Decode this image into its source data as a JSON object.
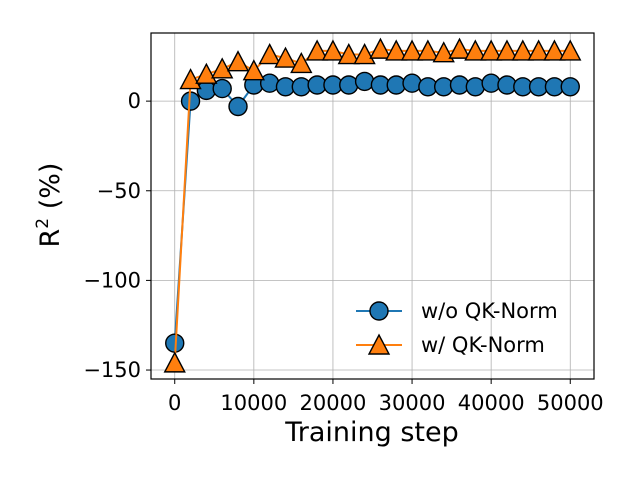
{
  "chart_data": {
    "type": "line",
    "xlabel": "Training step",
    "ylabel_base": "R",
    "ylabel_sup": "2",
    "ylabel_rest": " (%)",
    "xlim": [
      -3000,
      53000
    ],
    "ylim": [
      -155,
      38
    ],
    "xticks": [
      0,
      10000,
      20000,
      30000,
      40000,
      50000
    ],
    "xtick_labels": [
      "0",
      "10000",
      "20000",
      "30000",
      "40000",
      "50000"
    ],
    "yticks": [
      0,
      -50,
      -100,
      -150
    ],
    "ytick_labels": [
      "0",
      "−50",
      "−100",
      "−150"
    ],
    "grid": true,
    "legend_position": "lower-right",
    "x": [
      0,
      2000,
      4000,
      6000,
      8000,
      10000,
      12000,
      14000,
      16000,
      18000,
      20000,
      22000,
      24000,
      26000,
      28000,
      30000,
      32000,
      34000,
      36000,
      38000,
      40000,
      42000,
      44000,
      46000,
      48000,
      50000
    ],
    "series": [
      {
        "name": "w/o QK-Norm",
        "color": "#1f77b4",
        "marker": "circle",
        "values": [
          -135,
          0,
          6,
          7,
          -3,
          9,
          10,
          8,
          8,
          9,
          9,
          9,
          11,
          9,
          9,
          10,
          8,
          8,
          9,
          8,
          10,
          9,
          8,
          8,
          8,
          8
        ]
      },
      {
        "name": "w/ QK-Norm",
        "color": "#ff7f0e",
        "marker": "triangle",
        "values": [
          -146,
          12,
          15,
          18,
          22,
          17,
          26,
          24,
          21,
          28,
          28,
          26,
          26,
          29,
          28,
          28,
          28,
          27,
          29,
          28,
          28,
          28,
          28,
          28,
          28,
          28
        ]
      }
    ]
  }
}
